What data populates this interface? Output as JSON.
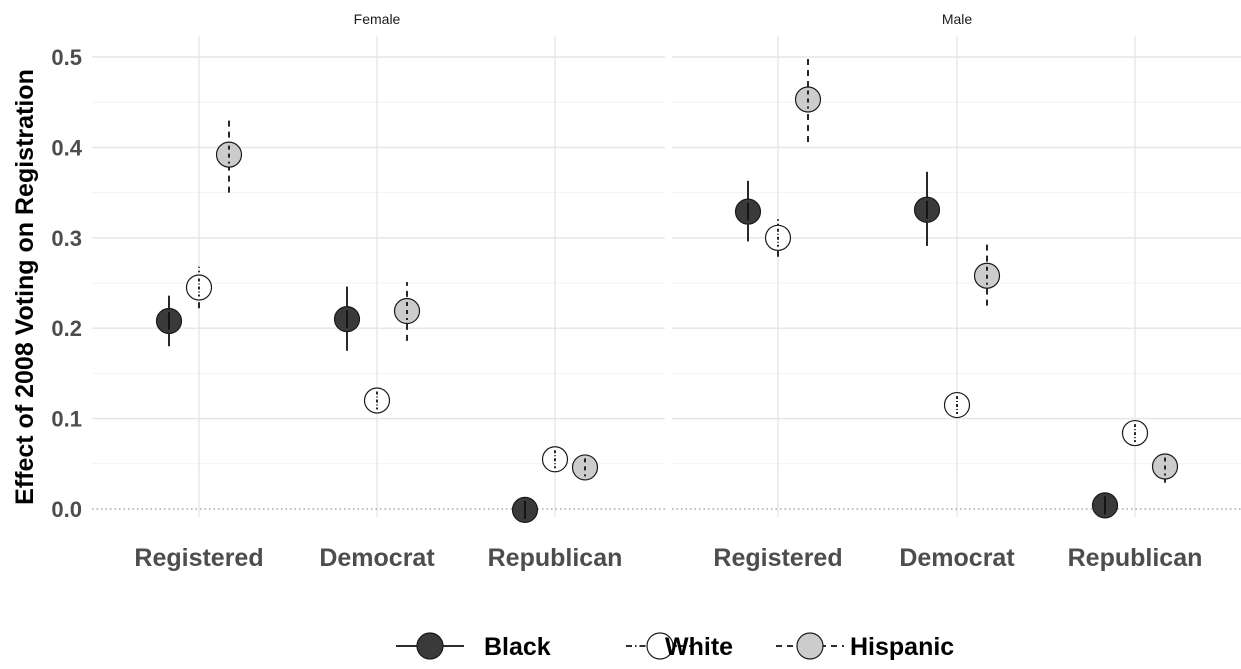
{
  "chart_data": {
    "type": "scatter",
    "ylabel": "Effect of 2008 Voting on Registration",
    "xlabel": "",
    "ylim": [
      0,
      0.5
    ],
    "y_ticks": [
      "0.0",
      "0.1",
      "0.2",
      "0.3",
      "0.4",
      "0.5"
    ],
    "categories": [
      "Registered",
      "Democrat",
      "Republican"
    ],
    "panels": [
      {
        "name": "Female",
        "series": [
          {
            "name": "Black",
            "values": [
              0.208,
              0.21,
              -0.001
            ],
            "lower": [
              0.18,
              0.175,
              -0.008
            ],
            "upper": [
              0.236,
              0.246,
              0.006
            ]
          },
          {
            "name": "White",
            "values": [
              0.245,
              0.12,
              0.055
            ],
            "lower": [
              0.222,
              0.107,
              0.043
            ],
            "upper": [
              0.268,
              0.133,
              0.067
            ]
          },
          {
            "name": "Hispanic",
            "values": [
              0.392,
              0.219,
              0.046
            ],
            "lower": [
              0.35,
              0.186,
              0.034
            ],
            "upper": [
              0.435,
              0.251,
              0.058
            ]
          }
        ]
      },
      {
        "name": "Male",
        "series": [
          {
            "name": "Black",
            "values": [
              0.329,
              0.331,
              0.004
            ],
            "lower": [
              0.296,
              0.291,
              -0.004
            ],
            "upper": [
              0.363,
              0.373,
              0.012
            ]
          },
          {
            "name": "White",
            "values": [
              0.3,
              0.115,
              0.084
            ],
            "lower": [
              0.279,
              0.102,
              0.072
            ],
            "upper": [
              0.322,
              0.128,
              0.097
            ]
          },
          {
            "name": "Hispanic",
            "values": [
              0.453,
              0.258,
              0.047
            ],
            "lower": [
              0.406,
              0.225,
              0.029
            ],
            "upper": [
              0.501,
              0.293,
              0.065
            ]
          }
        ]
      }
    ],
    "legend": {
      "position": "bottom",
      "entries": [
        {
          "name": "Black",
          "fill": "#3a3a3a",
          "line": "solid"
        },
        {
          "name": "White",
          "fill": "#ffffff",
          "line": "dotdash"
        },
        {
          "name": "Hispanic",
          "fill": "#cccccc",
          "line": "dashed"
        }
      ]
    },
    "grid": true,
    "reference_line": {
      "y": 0,
      "style": "dotted"
    }
  }
}
